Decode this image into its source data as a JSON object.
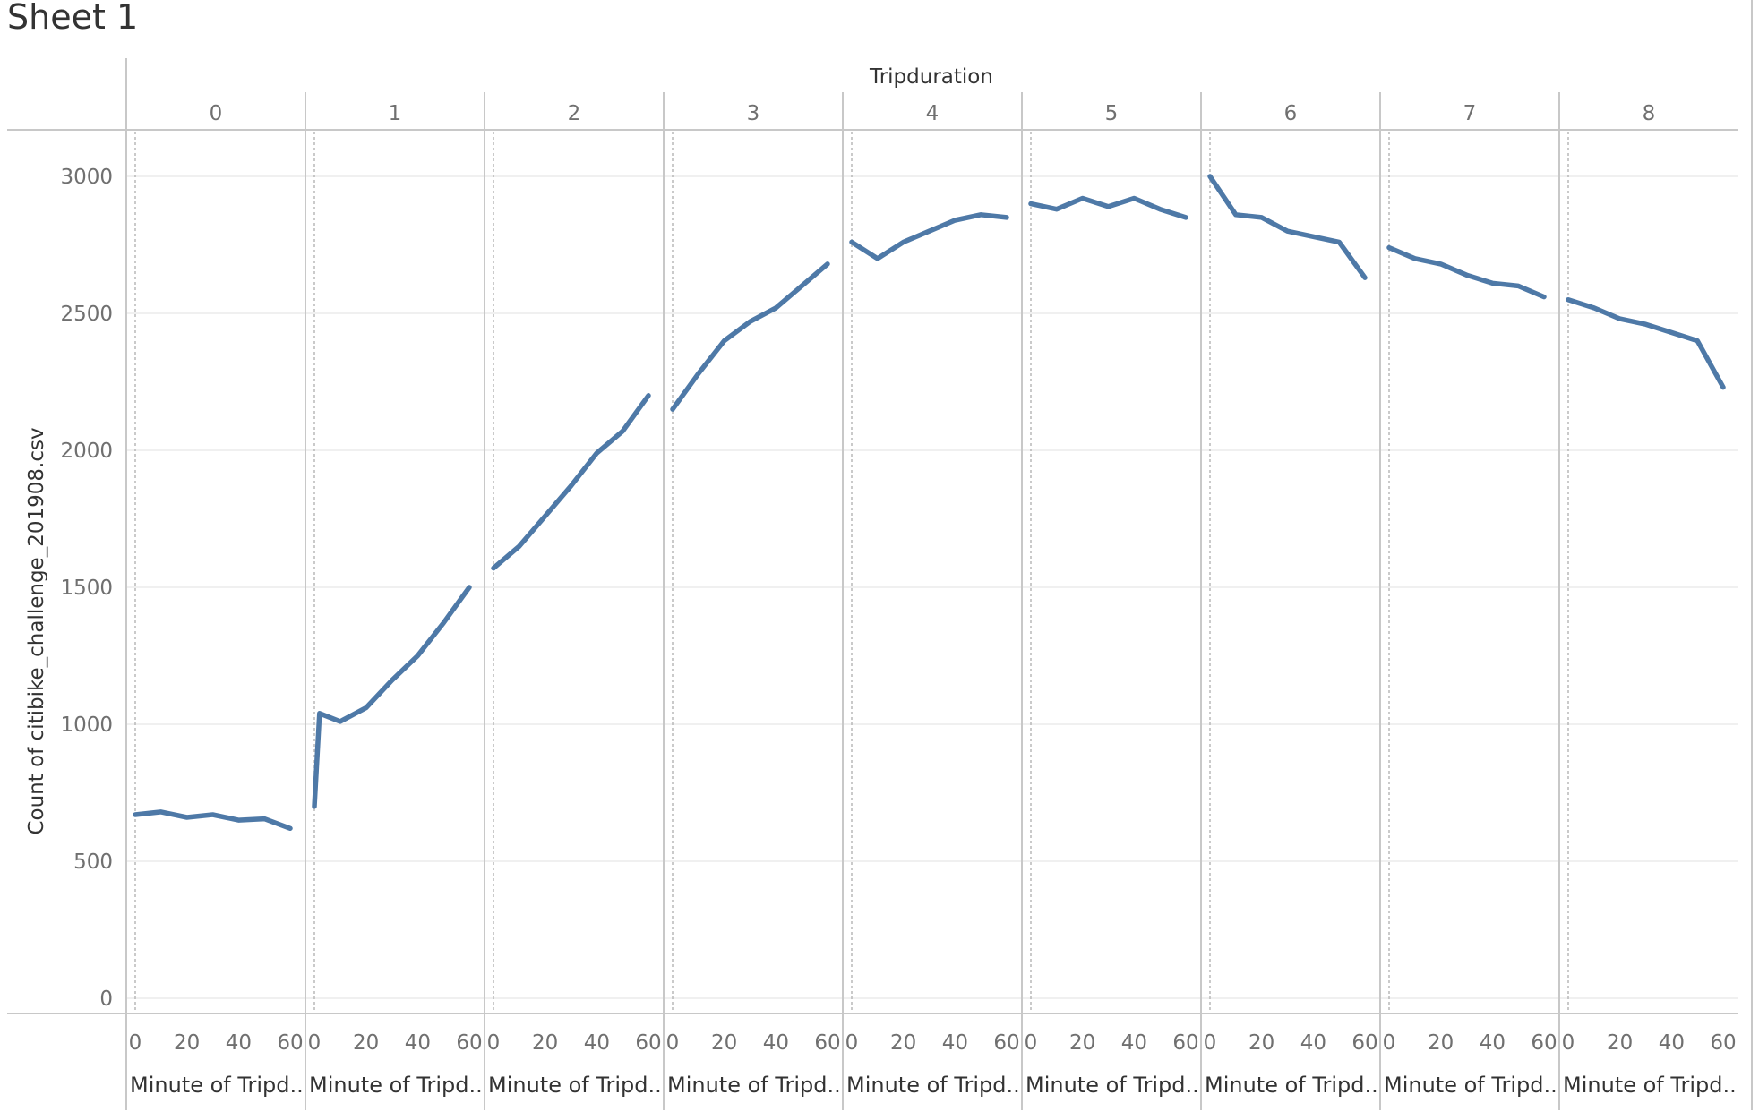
{
  "sheet_title": "Sheet 1",
  "colors": {
    "series": "#4e79a7",
    "divider": "#c8c8c8",
    "grid": "#ececec",
    "text_dark": "#333333",
    "text_muted": "#707070"
  },
  "chart_data": {
    "type": "line",
    "column_header_title": "Tripduration",
    "ylabel": "Count of citibike_challenge_201908.csv",
    "ylim": [
      0,
      3000
    ],
    "yticks": [
      0,
      500,
      1000,
      1500,
      2000,
      2500,
      3000
    ],
    "xticks": [
      0,
      20,
      40,
      60
    ],
    "x_field_label": "Minute of Tripd..",
    "grid": true,
    "panes": [
      {
        "label": "0",
        "x": [
          0,
          10,
          20,
          30,
          40,
          50,
          60
        ],
        "values": [
          670,
          680,
          660,
          670,
          650,
          655,
          620
        ]
      },
      {
        "label": "1",
        "x": [
          0,
          2,
          10,
          20,
          30,
          40,
          50,
          60
        ],
        "values": [
          700,
          1040,
          1010,
          1060,
          1160,
          1250,
          1370,
          1500
        ]
      },
      {
        "label": "2",
        "x": [
          0,
          10,
          20,
          30,
          40,
          50,
          60
        ],
        "values": [
          1570,
          1650,
          1760,
          1870,
          1990,
          2070,
          2200
        ]
      },
      {
        "label": "3",
        "x": [
          0,
          10,
          20,
          30,
          40,
          50,
          60
        ],
        "values": [
          2150,
          2280,
          2400,
          2470,
          2520,
          2600,
          2680
        ]
      },
      {
        "label": "4",
        "x": [
          0,
          10,
          20,
          30,
          40,
          50,
          60
        ],
        "values": [
          2760,
          2700,
          2760,
          2800,
          2840,
          2860,
          2850
        ]
      },
      {
        "label": "5",
        "x": [
          0,
          10,
          20,
          30,
          40,
          50,
          60
        ],
        "values": [
          2900,
          2880,
          2920,
          2890,
          2920,
          2880,
          2850
        ]
      },
      {
        "label": "6",
        "x": [
          0,
          10,
          20,
          30,
          40,
          50,
          60
        ],
        "values": [
          3000,
          2860,
          2850,
          2800,
          2780,
          2760,
          2630
        ]
      },
      {
        "label": "7",
        "x": [
          0,
          10,
          20,
          30,
          40,
          50,
          60
        ],
        "values": [
          2740,
          2700,
          2680,
          2640,
          2610,
          2600,
          2560
        ]
      },
      {
        "label": "8",
        "x": [
          0,
          10,
          20,
          30,
          40,
          50,
          60
        ],
        "values": [
          2550,
          2520,
          2480,
          2460,
          2430,
          2400,
          2230
        ]
      }
    ]
  }
}
